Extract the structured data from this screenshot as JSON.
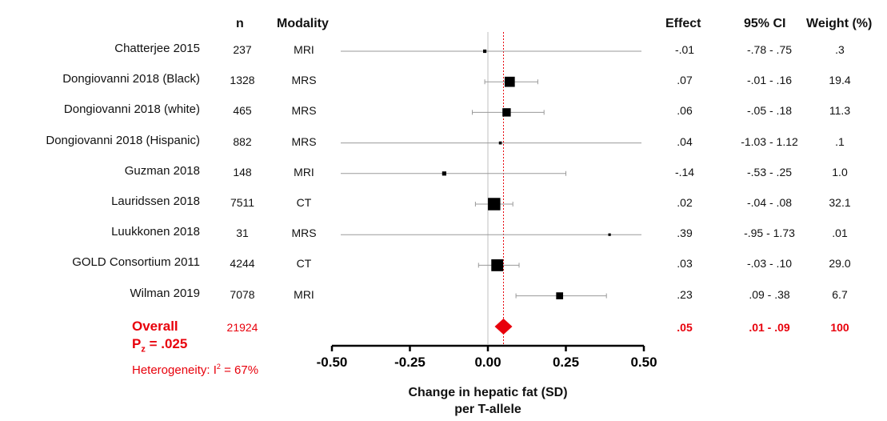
{
  "headers": {
    "n": "n",
    "modality": "Modality",
    "effect": "Effect",
    "ci": "95% CI",
    "weight": "Weight (%)"
  },
  "overall": {
    "label": "Overall",
    "n": "21924",
    "effect": ".05",
    "ci": ".01 - .09",
    "weight": "100",
    "pz_label": "P",
    "pz_sub": "z",
    "pz_value": " = .025",
    "heterogeneity_label": "Heterogeneity: I",
    "heterogeneity_sup": "2",
    "heterogeneity_value": " = 67%"
  },
  "colors": {
    "highlight": "#e8000b",
    "marker": "#000000",
    "whisker": "#9a9a9a",
    "zero_line": "#bfbfbf"
  },
  "chart_data": {
    "type": "forest",
    "xlabel": "Change in hepatic fat (SD)",
    "xlabel2": "per T-allele",
    "xlim": [
      -0.5,
      0.5
    ],
    "xticks": [
      -0.5,
      -0.25,
      0.0,
      0.25,
      0.5
    ],
    "xtick_labels": [
      "-0.50",
      "-0.25",
      "0.00",
      "0.25",
      "0.50"
    ],
    "reference_line": 0.05,
    "studies": [
      {
        "name": "Chatterjee 2015",
        "n": "237",
        "modality": "MRI",
        "effect": -0.01,
        "ci": [
          -0.78,
          0.75
        ],
        "effect_label": "-.01",
        "ci_label": "-.78 - .75",
        "weight": 0.3,
        "weight_label": ".3"
      },
      {
        "name": "Dongiovanni 2018 (Black)",
        "n": "1328",
        "modality": "MRS",
        "effect": 0.07,
        "ci": [
          -0.01,
          0.16
        ],
        "effect_label": ".07",
        "ci_label": "-.01 - .16",
        "weight": 19.4,
        "weight_label": "19.4"
      },
      {
        "name": "Dongiovanni 2018 (white)",
        "n": "465",
        "modality": "MRS",
        "effect": 0.06,
        "ci": [
          -0.05,
          0.18
        ],
        "effect_label": ".06",
        "ci_label": "-.05 - .18",
        "weight": 11.3,
        "weight_label": "11.3"
      },
      {
        "name": "Dongiovanni 2018 (Hispanic)",
        "n": "882",
        "modality": "MRS",
        "effect": 0.04,
        "ci": [
          -1.03,
          1.12
        ],
        "effect_label": ".04",
        "ci_label": "-1.03 - 1.12",
        "weight": 0.1,
        "weight_label": ".1"
      },
      {
        "name": "Guzman 2018",
        "n": "148",
        "modality": "MRI",
        "effect": -0.14,
        "ci": [
          -0.53,
          0.25
        ],
        "effect_label": "-.14",
        "ci_label": "-.53 - .25",
        "weight": 1.0,
        "weight_label": "1.0"
      },
      {
        "name": "Lauridssen 2018",
        "n": "7511",
        "modality": "CT",
        "effect": 0.02,
        "ci": [
          -0.04,
          0.08
        ],
        "effect_label": ".02",
        "ci_label": "-.04 - .08",
        "weight": 32.1,
        "weight_label": "32.1"
      },
      {
        "name": "Luukkonen 2018",
        "n": "31",
        "modality": "MRS",
        "effect": 0.39,
        "ci": [
          -0.95,
          1.73
        ],
        "effect_label": ".39",
        "ci_label": "-.95 - 1.73",
        "weight": 0.01,
        "weight_label": ".01"
      },
      {
        "name": "GOLD Consortium 2011",
        "n": "4244",
        "modality": "CT",
        "effect": 0.03,
        "ci": [
          -0.03,
          0.1
        ],
        "effect_label": ".03",
        "ci_label": "-.03 - .10",
        "weight": 29.0,
        "weight_label": "29.0"
      },
      {
        "name": "Wilman 2019",
        "n": "7078",
        "modality": "MRI",
        "effect": 0.23,
        "ci": [
          0.09,
          0.38
        ],
        "effect_label": ".23",
        "ci_label": ".09 - .38",
        "weight": 6.7,
        "weight_label": "6.7"
      }
    ],
    "pooled": {
      "effect": 0.05,
      "ci": [
        0.01,
        0.09
      ]
    }
  }
}
